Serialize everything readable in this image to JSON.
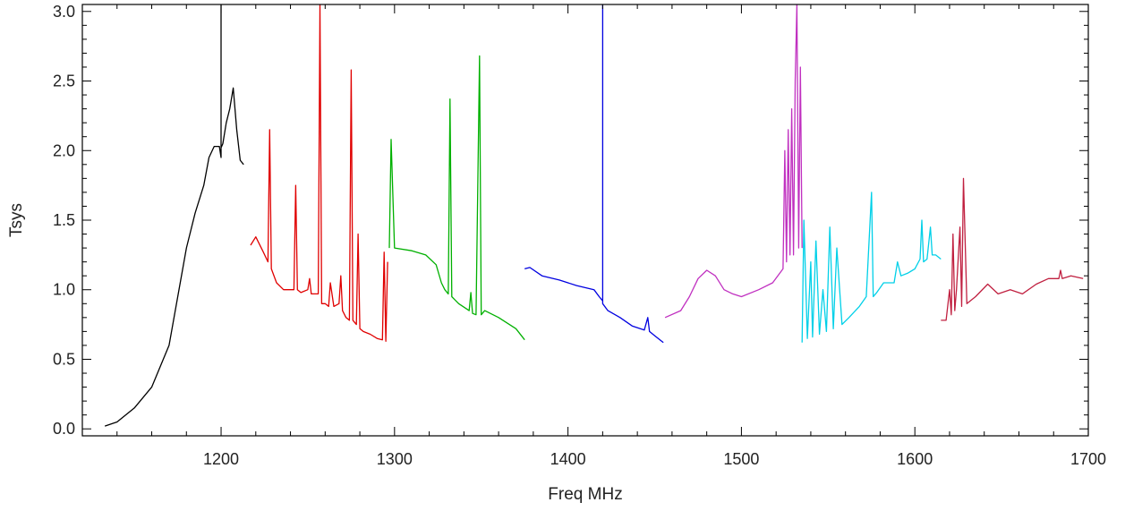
{
  "chart_data": {
    "type": "line",
    "title": "",
    "xlabel": "Freq MHz",
    "ylabel": "Tsys",
    "xlim": [
      1120,
      1700
    ],
    "ylim": [
      -0.05,
      3.05
    ],
    "x_ticks": [
      1200,
      1300,
      1400,
      1500,
      1600,
      1700
    ],
    "x_tick_labels": [
      "1200",
      "1300",
      "1400",
      "1500",
      "1600",
      "1700"
    ],
    "y_ticks": [
      0.0,
      0.5,
      1.0,
      1.5,
      2.0,
      2.5,
      3.0
    ],
    "y_tick_labels": [
      "0.0",
      "0.5",
      "1.0",
      "1.5",
      "2.0",
      "2.5",
      "3.0"
    ],
    "grid": false,
    "series": [
      {
        "color": "#000000",
        "x": [
          1133,
          1140,
          1150,
          1160,
          1170,
          1175,
          1180,
          1185,
          1190,
          1193,
          1196,
          1199,
          1200,
          1200,
          1200,
          1201,
          1203,
          1205,
          1207,
          1209,
          1211,
          1213
        ],
        "y": [
          0.02,
          0.05,
          0.15,
          0.3,
          0.6,
          0.95,
          1.3,
          1.55,
          1.75,
          1.95,
          2.03,
          2.03,
          1.95,
          3.05,
          2.02,
          2.05,
          2.2,
          2.3,
          2.45,
          2.15,
          1.93,
          1.9
        ]
      },
      {
        "color": "#e00000",
        "x": [
          1217,
          1220,
          1224,
          1227,
          1228,
          1229,
          1232,
          1236,
          1240,
          1242,
          1243,
          1244,
          1246,
          1250,
          1251,
          1252,
          1256,
          1257,
          1258,
          1260,
          1262,
          1263,
          1265,
          1268,
          1269,
          1270,
          1272,
          1274,
          1275,
          1276,
          1278,
          1279,
          1280,
          1282,
          1286,
          1290,
          1293,
          1294,
          1295,
          1296
        ],
        "y": [
          1.32,
          1.38,
          1.28,
          1.2,
          2.15,
          1.15,
          1.05,
          1.0,
          1.0,
          1.0,
          1.75,
          1.0,
          0.98,
          1.0,
          1.08,
          0.97,
          0.97,
          3.05,
          0.9,
          0.9,
          0.88,
          1.05,
          0.88,
          0.9,
          1.1,
          0.85,
          0.8,
          0.78,
          2.58,
          0.78,
          0.75,
          1.4,
          0.72,
          0.7,
          0.68,
          0.65,
          0.64,
          1.27,
          0.63,
          1.2
        ]
      },
      {
        "color": "#00b000",
        "x": [
          1297,
          1298,
          1300,
          1310,
          1318,
          1324,
          1327,
          1329,
          1331,
          1332,
          1333,
          1337,
          1343,
          1344,
          1345,
          1347,
          1349,
          1350,
          1352,
          1360,
          1370,
          1375
        ],
        "y": [
          1.3,
          2.08,
          1.3,
          1.28,
          1.25,
          1.18,
          1.05,
          1.0,
          0.97,
          2.37,
          0.95,
          0.9,
          0.85,
          0.98,
          0.83,
          0.82,
          2.68,
          0.82,
          0.85,
          0.8,
          0.72,
          0.64
        ]
      },
      {
        "color": "#0000e0",
        "x": [
          1375,
          1378,
          1385,
          1395,
          1405,
          1415,
          1418,
          1420,
          1420,
          1420,
          1423,
          1430,
          1437,
          1444,
          1446,
          1447,
          1450,
          1455
        ],
        "y": [
          1.15,
          1.16,
          1.1,
          1.07,
          1.03,
          1.0,
          0.95,
          0.92,
          3.05,
          0.9,
          0.85,
          0.8,
          0.74,
          0.71,
          0.8,
          0.7,
          0.67,
          0.62
        ]
      },
      {
        "color": "#c030c0",
        "x": [
          1456,
          1465,
          1470,
          1475,
          1480,
          1485,
          1490,
          1495,
          1500,
          1510,
          1518,
          1524,
          1525,
          1526,
          1527,
          1528,
          1529,
          1530,
          1531,
          1532,
          1533,
          1534,
          1535
        ],
        "y": [
          0.8,
          0.85,
          0.95,
          1.08,
          1.14,
          1.1,
          1.0,
          0.97,
          0.95,
          1.0,
          1.05,
          1.15,
          2.0,
          1.2,
          2.15,
          1.25,
          2.3,
          1.25,
          2.5,
          3.05,
          1.3,
          2.6,
          1.3
        ]
      },
      {
        "color": "#00d0e8",
        "x": [
          1535,
          1536,
          1538,
          1540,
          1541,
          1543,
          1545,
          1547,
          1549,
          1551,
          1553,
          1555,
          1558,
          1562,
          1568,
          1572,
          1575,
          1576,
          1578,
          1582,
          1588,
          1590,
          1592,
          1596,
          1600,
          1603,
          1604,
          1605,
          1607,
          1609,
          1610,
          1612,
          1615
        ],
        "y": [
          0.62,
          1.5,
          0.65,
          1.2,
          0.66,
          1.35,
          0.68,
          1.0,
          0.7,
          1.45,
          0.72,
          1.3,
          0.75,
          0.8,
          0.88,
          0.95,
          1.7,
          0.95,
          0.98,
          1.05,
          1.05,
          1.2,
          1.1,
          1.12,
          1.15,
          1.22,
          1.5,
          1.2,
          1.22,
          1.45,
          1.25,
          1.25,
          1.22
        ]
      },
      {
        "color": "#c02040",
        "x": [
          1615,
          1618,
          1620,
          1621,
          1622,
          1623,
          1624,
          1626,
          1627,
          1628,
          1630,
          1635,
          1642,
          1648,
          1655,
          1662,
          1670,
          1677,
          1683,
          1684,
          1685,
          1690,
          1697
        ],
        "y": [
          0.78,
          0.78,
          1.0,
          0.82,
          1.4,
          0.85,
          1.0,
          1.45,
          0.88,
          1.8,
          0.9,
          0.95,
          1.04,
          0.97,
          1.0,
          0.97,
          1.04,
          1.08,
          1.08,
          1.14,
          1.08,
          1.1,
          1.08
        ]
      }
    ]
  }
}
